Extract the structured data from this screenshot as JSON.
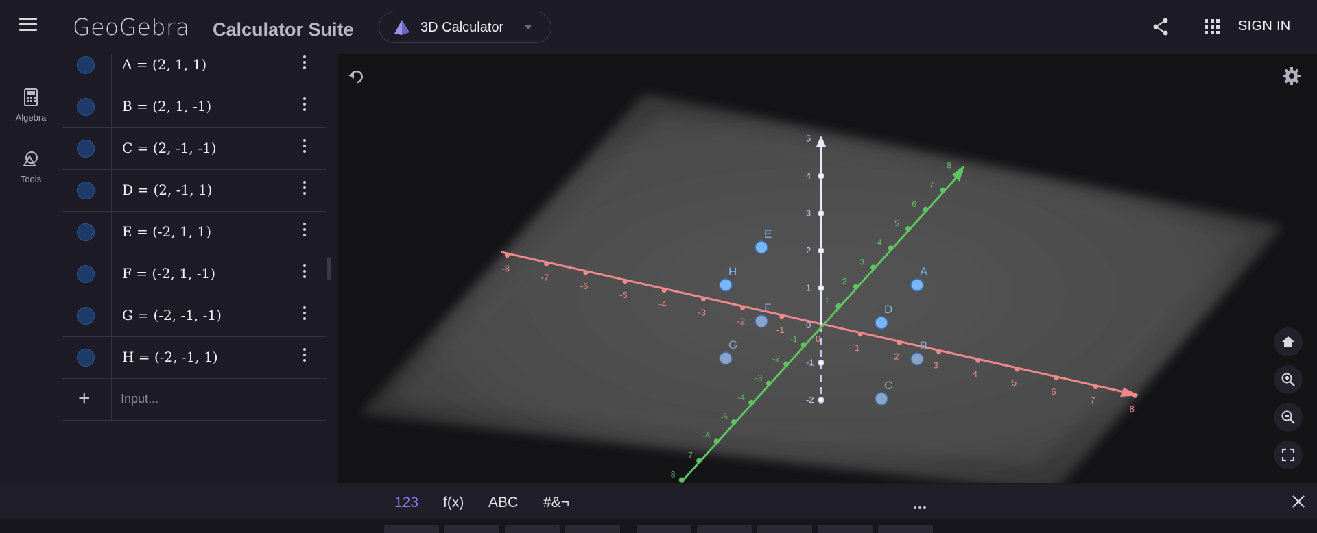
{
  "topbar": {
    "logo": "GeoGebra",
    "suite_title": "Calculator Suite",
    "app_switcher_label": "3D Calculator",
    "signin_label": "SIGN IN"
  },
  "toolstrip": {
    "items": [
      {
        "label": "Algebra",
        "icon": "calculator-icon"
      },
      {
        "label": "Tools",
        "icon": "shapes-icon"
      }
    ]
  },
  "algebra": {
    "rows": [
      {
        "expr": "A = (2, 1, 1)"
      },
      {
        "expr": "B = (2, 1, -1)"
      },
      {
        "expr": "C = (2, -1, -1)"
      },
      {
        "expr": "D = (2, -1, 1)"
      },
      {
        "expr": "E = (-2, 1, 1)"
      },
      {
        "expr": "F = (-2, 1, -1)"
      },
      {
        "expr": "G = (-2, -1, -1)"
      },
      {
        "expr": "H = (-2, -1, 1)"
      }
    ],
    "input_placeholder": "Input..."
  },
  "graphics": {
    "x_axis_ticks": [
      "-8",
      "-7",
      "-6",
      "-5",
      "-4",
      "-3",
      "-2",
      "-1",
      "0",
      "1",
      "2",
      "3",
      "4",
      "5",
      "6",
      "7",
      "8"
    ],
    "y_axis_ticks": [
      "-8",
      "-7",
      "-6",
      "-5",
      "-4",
      "-3",
      "-2",
      "-1",
      "1",
      "2",
      "3",
      "4",
      "5",
      "6",
      "7",
      "8"
    ],
    "z_axis_ticks": [
      "-2",
      "-1",
      "0",
      "1",
      "2",
      "3",
      "4",
      "5"
    ],
    "points": [
      "A",
      "B",
      "C",
      "D",
      "E",
      "F",
      "G",
      "H"
    ],
    "colors": {
      "x_axis": "#f08a8a",
      "y_axis": "#5fc45f",
      "z_axis": "#c9c9ff",
      "point": "#7ab6f5",
      "point_dim": "#8aa4c8"
    }
  },
  "keyboard": {
    "tabs": [
      "123",
      "f(x)",
      "ABC",
      "#&¬"
    ]
  }
}
